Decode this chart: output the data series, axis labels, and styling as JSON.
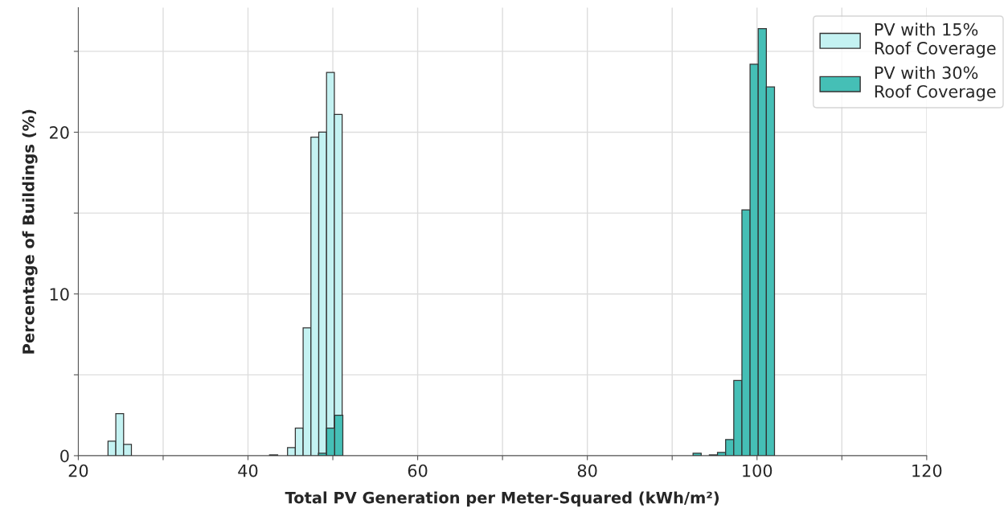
{
  "chart_data": {
    "type": "histogram",
    "xlabel": "Total PV Generation per Meter-Squared (kWh/m²)",
    "ylabel": "Percentage of Buildings (%)",
    "xlim": [
      20,
      120
    ],
    "xticks": [
      20,
      {
        "value": 30,
        "label": null
      },
      40,
      {
        "value": 50,
        "label": null
      },
      60,
      {
        "value": 70,
        "label": null
      },
      80,
      {
        "value": 90,
        "label": null
      },
      100,
      {
        "value": 110,
        "label": null
      },
      120
    ],
    "ylim": [
      0,
      27.7
    ],
    "yticks": [
      0,
      {
        "value": 5,
        "label": null
      },
      10,
      {
        "value": 15,
        "label": null
      },
      20,
      {
        "value": 25,
        "label": null
      }
    ],
    "grid": true,
    "bins": [
      23.5,
      24.42,
      25.34,
      26.26,
      27.18,
      28.1,
      29.02,
      29.94,
      30.86,
      31.78,
      32.7,
      33.62,
      34.54,
      35.46,
      36.38,
      37.3,
      38.22,
      39.14,
      40.06,
      40.98,
      41.9,
      42.82,
      43.74,
      44.66,
      45.58,
      46.5,
      47.42,
      48.34,
      49.26,
      50.18,
      51.1
    ],
    "legend": "top right",
    "series": [
      {
        "name": "PV with 15%\nRoof Coverage",
        "color": "#c4f2f2",
        "values": [
          0.9,
          2.6,
          0.7,
          0,
          0,
          0,
          0,
          0,
          0,
          0,
          0,
          0,
          0,
          0,
          0,
          0,
          0,
          0,
          0,
          0,
          0,
          0,
          0,
          0.5,
          1.7,
          7.9,
          19.7,
          20.0,
          23.7,
          21.1
        ]
      },
      {
        "name": "PV with 30%\nRoof Coverage",
        "color": "#45bfb6",
        "bins": [
          42.54,
          43.5,
          44.46,
          45.42,
          46.38,
          47.34,
          48.3,
          49.26,
          50.22,
          51.18,
          52.14,
          53.1,
          54.06,
          55.02,
          55.98,
          56.94,
          57.9,
          58.86,
          59.82,
          60.78,
          61.74,
          62.7,
          63.66,
          64.62,
          65.58,
          66.54,
          67.5,
          68.46,
          69.42,
          70.38,
          71.34,
          72.3,
          73.26,
          74.22,
          75.18,
          76.14,
          77.1,
          78.06,
          79.02,
          79.98,
          80.94,
          81.9,
          82.86,
          83.82,
          84.78,
          85.74,
          86.7,
          87.66,
          88.62,
          89.58,
          90.54,
          91.5,
          92.46,
          93.42,
          94.38,
          95.34,
          96.3,
          97.26,
          98.22,
          99.18,
          100.14,
          101.1,
          102.06
        ],
        "values": [
          0.05,
          0,
          0,
          0,
          0,
          0,
          0.15,
          1.7,
          2.5,
          0,
          0,
          0,
          0,
          0,
          0,
          0,
          0,
          0,
          0,
          0,
          0,
          0,
          0,
          0,
          0,
          0,
          0,
          0,
          0,
          0,
          0,
          0,
          0,
          0,
          0,
          0,
          0,
          0,
          0,
          0,
          0,
          0,
          0,
          0,
          0,
          0,
          0,
          0,
          0,
          0,
          0,
          0,
          0.15,
          0,
          0.05,
          0.2,
          1.0,
          4.65,
          15.2,
          24.2,
          26.4,
          22.8
        ]
      }
    ]
  }
}
